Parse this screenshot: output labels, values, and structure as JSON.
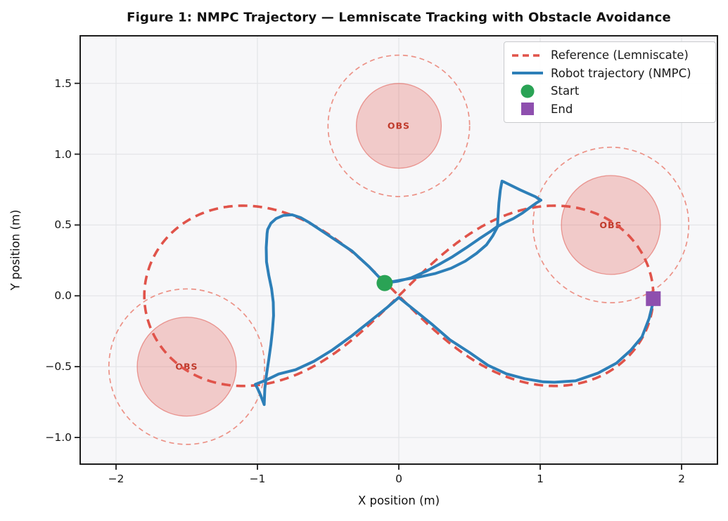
{
  "title": "Figure 1: NMPC Trajectory — Lemniscate Tracking with Obstacle Avoidance",
  "axes": {
    "xlabel": "X position (m)",
    "ylabel": "Y position (m)",
    "xlim": [
      -2.255,
      2.255
    ],
    "ylim": [
      -1.1875,
      1.8375
    ],
    "xticks": [
      {
        "v": -2,
        "label": "−2"
      },
      {
        "v": -1,
        "label": "−1"
      },
      {
        "v": 0,
        "label": "0"
      },
      {
        "v": 1,
        "label": "1"
      },
      {
        "v": 2,
        "label": "2"
      }
    ],
    "yticks": [
      {
        "v": 1.5,
        "label": "1.5"
      },
      {
        "v": 1.0,
        "label": "1.0"
      },
      {
        "v": 0.5,
        "label": "0.5"
      },
      {
        "v": 0.0,
        "label": "0.0"
      },
      {
        "v": -0.5,
        "label": "−0.5"
      },
      {
        "v": -1.0,
        "label": "−1.0"
      }
    ]
  },
  "legend": {
    "position": "upper right",
    "entries": [
      {
        "label": "Reference (Lemniscate)",
        "marker": "dashed-line",
        "color": "#e0534a"
      },
      {
        "label": "Robot trajectory (NMPC)",
        "marker": "line",
        "color": "#2d7fb8"
      },
      {
        "label": "Start",
        "marker": "circle",
        "color": "#2aa355"
      },
      {
        "label": "End",
        "marker": "square",
        "color": "#8e4fae"
      }
    ]
  },
  "chart_data": {
    "type": "line",
    "title": "Figure 1: NMPC Trajectory — Lemniscate Tracking with Obstacle Avoidance",
    "xlabel": "X position (m)",
    "ylabel": "Y position (m)",
    "xlim": [
      -2.255,
      2.255
    ],
    "ylim": [
      -1.1875,
      1.8375
    ],
    "grid": true,
    "legend_position": "upper right",
    "reference": {
      "name": "Reference (Lemniscate)",
      "shape": "lemniscate_of_bernoulli",
      "formula": "x = a·cos(t)/(1+sin²t), y = a·sin(t)·cos(t)/(1+sin²t), t ∈ [0, 2π]",
      "a": 1.8,
      "x_extent": [
        -1.8,
        1.8
      ],
      "y_extent": [
        -0.64,
        0.64
      ],
      "crossing_point": [
        0,
        0
      ]
    },
    "robot": {
      "name": "Robot trajectory (NMPC)",
      "points": [
        [
          -0.1,
          0.09
        ],
        [
          0.02,
          0.112
        ],
        [
          0.14,
          0.132
        ],
        [
          0.26,
          0.158
        ],
        [
          0.37,
          0.195
        ],
        [
          0.47,
          0.245
        ],
        [
          0.55,
          0.3
        ],
        [
          0.62,
          0.36
        ],
        [
          0.665,
          0.425
        ],
        [
          0.7,
          0.49
        ],
        [
          0.755,
          0.52
        ],
        [
          0.81,
          0.545
        ],
        [
          0.875,
          0.585
        ],
        [
          0.93,
          0.625
        ],
        [
          0.975,
          0.657
        ],
        [
          1.005,
          0.675
        ],
        [
          0.965,
          0.7
        ],
        [
          0.915,
          0.722
        ],
        [
          0.858,
          0.748
        ],
        [
          0.8,
          0.776
        ],
        [
          0.748,
          0.802
        ],
        [
          0.73,
          0.81
        ],
        [
          0.718,
          0.745
        ],
        [
          0.708,
          0.655
        ],
        [
          0.702,
          0.565
        ],
        [
          0.698,
          0.49
        ],
        [
          0.645,
          0.452
        ],
        [
          0.565,
          0.4
        ],
        [
          0.475,
          0.338
        ],
        [
          0.38,
          0.276
        ],
        [
          0.285,
          0.222
        ],
        [
          0.19,
          0.172
        ],
        [
          0.09,
          0.128
        ],
        [
          -0.01,
          0.102
        ],
        [
          -0.1,
          0.09
        ],
        [
          -0.21,
          0.205
        ],
        [
          -0.33,
          0.315
        ],
        [
          -0.45,
          0.395
        ],
        [
          -0.55,
          0.462
        ],
        [
          -0.63,
          0.515
        ],
        [
          -0.695,
          0.552
        ],
        [
          -0.755,
          0.572
        ],
        [
          -0.815,
          0.568
        ],
        [
          -0.868,
          0.545
        ],
        [
          -0.905,
          0.512
        ],
        [
          -0.928,
          0.468
        ],
        [
          -0.932,
          0.44
        ],
        [
          -0.938,
          0.34
        ],
        [
          -0.936,
          0.24
        ],
        [
          -0.92,
          0.145
        ],
        [
          -0.9,
          0.05
        ],
        [
          -0.888,
          -0.045
        ],
        [
          -0.886,
          -0.14
        ],
        [
          -0.894,
          -0.245
        ],
        [
          -0.905,
          -0.345
        ],
        [
          -0.92,
          -0.45
        ],
        [
          -0.936,
          -0.555
        ],
        [
          -0.948,
          -0.655
        ],
        [
          -0.952,
          -0.768
        ],
        [
          -0.978,
          -0.7
        ],
        [
          -1.002,
          -0.648
        ],
        [
          -1.015,
          -0.625
        ],
        [
          -0.945,
          -0.598
        ],
        [
          -0.85,
          -0.552
        ],
        [
          -0.73,
          -0.522
        ],
        [
          -0.6,
          -0.462
        ],
        [
          -0.47,
          -0.382
        ],
        [
          -0.34,
          -0.288
        ],
        [
          -0.21,
          -0.185
        ],
        [
          -0.09,
          -0.088
        ],
        [
          0.0,
          -0.012
        ],
        [
          0.12,
          -0.108
        ],
        [
          0.24,
          -0.205
        ],
        [
          0.36,
          -0.31
        ],
        [
          0.5,
          -0.4
        ],
        [
          0.63,
          -0.49
        ],
        [
          0.76,
          -0.55
        ],
        [
          0.89,
          -0.585
        ],
        [
          1.02,
          -0.607
        ],
        [
          1.1,
          -0.61
        ],
        [
          1.25,
          -0.6
        ],
        [
          1.41,
          -0.545
        ],
        [
          1.54,
          -0.475
        ],
        [
          1.64,
          -0.385
        ],
        [
          1.72,
          -0.29
        ],
        [
          1.77,
          -0.16
        ],
        [
          1.795,
          -0.06
        ],
        [
          1.8,
          -0.02
        ]
      ]
    },
    "start": {
      "name": "Start",
      "x": -0.1,
      "y": 0.09
    },
    "end": {
      "name": "End",
      "x": 1.8,
      "y": -0.02
    },
    "obstacles": [
      {
        "x": 0.0,
        "y": 1.2,
        "radius": 0.3,
        "safety_radius": 0.5,
        "label": "OBS"
      },
      {
        "x": 1.5,
        "y": 0.5,
        "radius": 0.35,
        "safety_radius": 0.55,
        "label": "OBS"
      },
      {
        "x": -1.5,
        "y": -0.5,
        "radius": 0.35,
        "safety_radius": 0.55,
        "label": "OBS"
      }
    ]
  },
  "colors": {
    "figure_bg": "#ffffff",
    "axes_bg": "#f7f7f9",
    "grid": "#e3e4e7",
    "spine": "#1c1c1c",
    "tick_text": "#161616",
    "reference": "#e0534a",
    "robot": "#2d7fb8",
    "start": "#2aa355",
    "end": "#8e4fae",
    "obstacle_fill": "rgba(224,83,74,0.27)",
    "obstacle_edge": "rgba(224,83,74,0.55)",
    "obstacle_ring": "#ec9287",
    "obstacle_text": "#c03a2b"
  }
}
